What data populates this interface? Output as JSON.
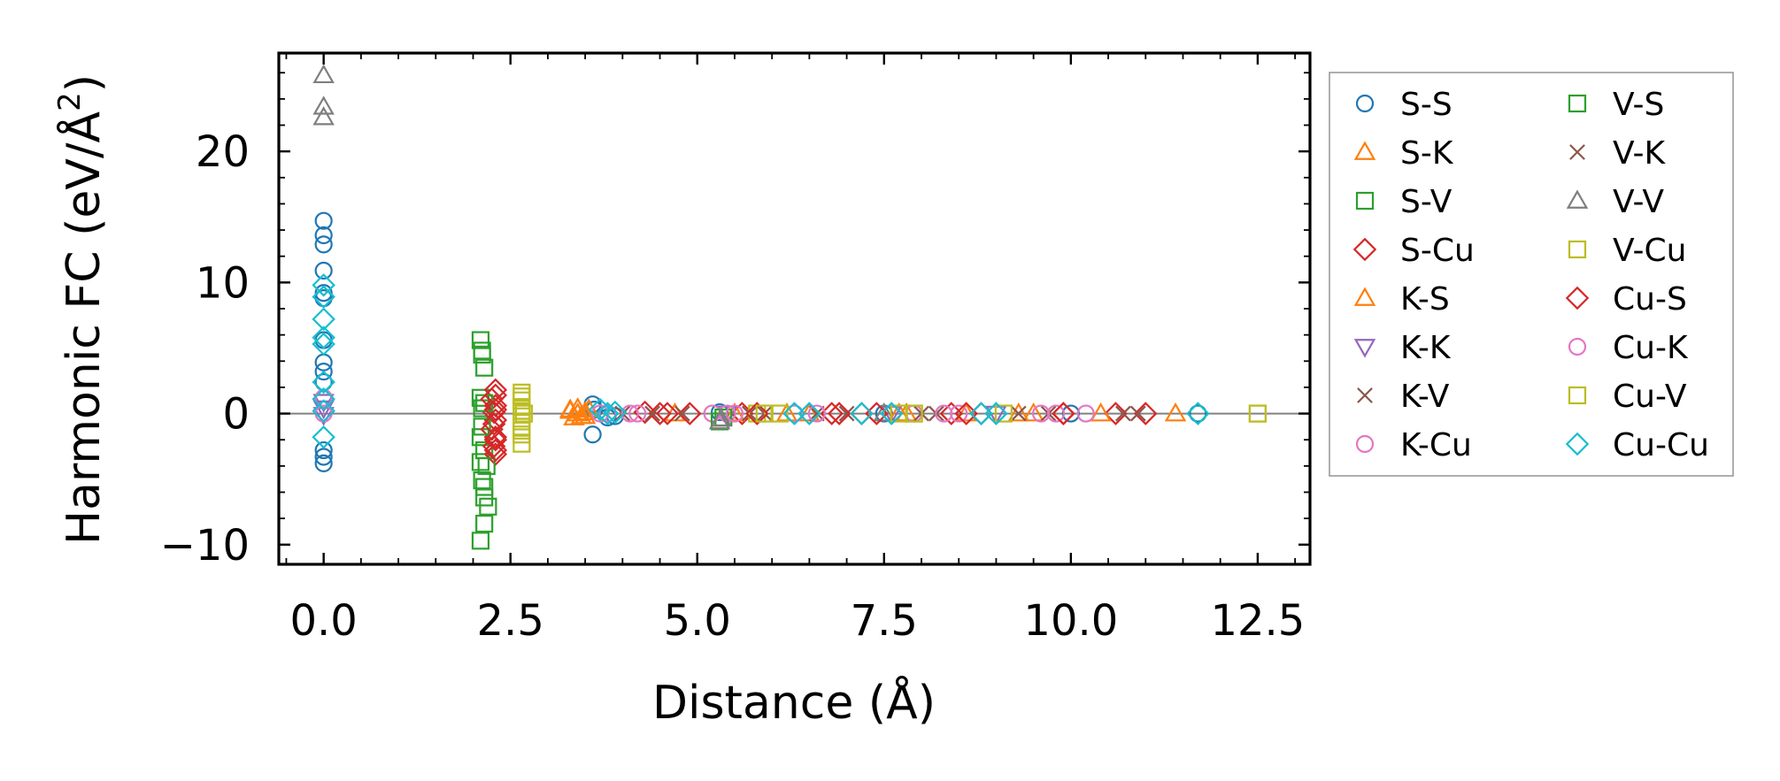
{
  "chart_data": {
    "type": "scatter",
    "title": "",
    "xlabel": "Distance (Å)",
    "ylabel_main": "Harmonic FC (eV/Å",
    "ylabel_sup": "2",
    "ylabel_close": ")",
    "xlim": [
      -0.6,
      13.2
    ],
    "ylim": [
      -11.5,
      27.5
    ],
    "xticks": [
      0.0,
      2.5,
      5.0,
      7.5,
      10.0,
      12.5
    ],
    "xtick_labels": [
      "0.0",
      "2.5",
      "5.0",
      "7.5",
      "10.0",
      "12.5"
    ],
    "yticks": [
      -10,
      0,
      10,
      20
    ],
    "ytick_labels": [
      "−10",
      "0",
      "10",
      "20"
    ],
    "zero_line": 0,
    "legend_placement": "outside-right",
    "series": [
      {
        "name": "S-S",
        "marker": "circle",
        "color": "#1f77b4",
        "points": [
          [
            0,
            14.7
          ],
          [
            0,
            13.6
          ],
          [
            0,
            12.9
          ],
          [
            0,
            10.9
          ],
          [
            0,
            9.2
          ],
          [
            0,
            8.8
          ],
          [
            0,
            5.6
          ],
          [
            0,
            3.9
          ],
          [
            0,
            3.2
          ],
          [
            0,
            2.4
          ],
          [
            0,
            -2.8
          ],
          [
            0,
            -3.3
          ],
          [
            0,
            -3.8
          ],
          [
            3.6,
            0.7
          ],
          [
            3.62,
            0.3
          ],
          [
            3.6,
            -1.6
          ],
          [
            3.8,
            -0.3
          ],
          [
            3.9,
            -0.2
          ],
          [
            5.3,
            0.1
          ],
          [
            7.5,
            0.0
          ],
          [
            10.0,
            0.0
          ],
          [
            11.7,
            0.0
          ]
        ]
      },
      {
        "name": "S-K",
        "marker": "triangle-up",
        "color": "#ff7f0e",
        "points": [
          [
            3.3,
            0.2
          ],
          [
            3.35,
            -0.3
          ],
          [
            3.4,
            0.4
          ],
          [
            3.45,
            -0.2
          ],
          [
            3.5,
            0.1
          ],
          [
            3.55,
            0.3
          ],
          [
            4.7,
            0.0
          ],
          [
            6.5,
            0.0
          ],
          [
            7.8,
            0.0
          ],
          [
            8.6,
            0.0
          ],
          [
            9.5,
            0.0
          ],
          [
            11.4,
            0.0
          ]
        ]
      },
      {
        "name": "S-V",
        "marker": "square",
        "color": "#2ca02c",
        "points": [
          [
            2.1,
            5.6
          ],
          [
            2.12,
            4.5
          ],
          [
            2.15,
            3.5
          ],
          [
            2.1,
            1.2
          ],
          [
            2.12,
            0.4
          ],
          [
            2.1,
            -1.8
          ],
          [
            2.15,
            -2.8
          ],
          [
            2.1,
            -3.7
          ],
          [
            2.12,
            -5.1
          ],
          [
            2.15,
            -5.6
          ],
          [
            2.2,
            -7.1
          ],
          [
            2.15,
            -8.4
          ],
          [
            2.1,
            -9.7
          ]
        ]
      },
      {
        "name": "S-Cu",
        "marker": "diamond",
        "color": "#d62728",
        "points": [
          [
            2.3,
            1.8
          ],
          [
            2.25,
            1.1
          ],
          [
            2.3,
            0.6
          ],
          [
            2.28,
            0.1
          ],
          [
            2.3,
            -0.5
          ],
          [
            2.25,
            -1.2
          ],
          [
            2.3,
            -1.8
          ],
          [
            2.28,
            -2.5
          ],
          [
            2.3,
            -3.1
          ],
          [
            4.3,
            0.1
          ],
          [
            4.5,
            0.0
          ],
          [
            4.9,
            0.0
          ],
          [
            5.6,
            0.0
          ],
          [
            6.8,
            0.0
          ],
          [
            7.2,
            0.0
          ],
          [
            8.4,
            0.0
          ],
          [
            8.8,
            0.0
          ],
          [
            9.9,
            0.0
          ],
          [
            10.6,
            0.0
          ],
          [
            11.0,
            0.0
          ]
        ]
      },
      {
        "name": "K-S",
        "marker": "triangle-up",
        "color": "#ff7f0e",
        "points": [
          [
            3.3,
            0.3
          ],
          [
            3.4,
            0.0
          ],
          [
            3.5,
            -0.2
          ],
          [
            5.5,
            0.0
          ],
          [
            6.2,
            0.0
          ],
          [
            7.7,
            0.0
          ],
          [
            9.3,
            0.0
          ],
          [
            10.4,
            0.0
          ]
        ]
      },
      {
        "name": "K-K",
        "marker": "triangle-down",
        "color": "#9467bd",
        "points": [
          [
            0,
            0.4
          ],
          [
            0,
            -0.1
          ],
          [
            0,
            0.9
          ],
          [
            5.4,
            0.0
          ],
          [
            7.6,
            0.0
          ],
          [
            9.0,
            0.0
          ]
        ]
      },
      {
        "name": "K-V",
        "marker": "x",
        "color": "#8c564b",
        "points": [
          [
            4.0,
            0.0
          ],
          [
            4.8,
            0.0
          ],
          [
            5.9,
            0.0
          ],
          [
            6.6,
            0.0
          ],
          [
            8.2,
            0.0
          ],
          [
            9.7,
            0.0
          ],
          [
            10.7,
            0.0
          ]
        ]
      },
      {
        "name": "K-Cu",
        "marker": "circle",
        "color": "#e377c2",
        "points": [
          [
            0,
            1.2
          ],
          [
            0,
            0.0
          ],
          [
            3.8,
            0.0
          ],
          [
            4.1,
            0.0
          ],
          [
            5.2,
            0.0
          ],
          [
            5.4,
            0.0
          ],
          [
            6.3,
            0.0
          ],
          [
            7.9,
            0.0
          ],
          [
            8.5,
            0.0
          ],
          [
            9.8,
            0.0
          ],
          [
            10.2,
            0.0
          ]
        ]
      },
      {
        "name": "V-S",
        "marker": "square",
        "color": "#2ca02c",
        "points": [
          [
            2.12,
            4.8
          ],
          [
            2.15,
            0.8
          ],
          [
            2.12,
            -1.0
          ],
          [
            2.18,
            -4.0
          ],
          [
            2.15,
            -6.4
          ],
          [
            5.3,
            -0.6
          ],
          [
            5.35,
            -0.3
          ]
        ]
      },
      {
        "name": "V-K",
        "marker": "x",
        "color": "#8c564b",
        "points": [
          [
            4.4,
            0.0
          ],
          [
            5.7,
            0.0
          ],
          [
            7.0,
            0.0
          ],
          [
            8.0,
            0.0
          ],
          [
            9.3,
            0.0
          ],
          [
            10.9,
            0.0
          ]
        ]
      },
      {
        "name": "V-V",
        "marker": "triangle-up",
        "color": "#7f7f7f",
        "points": [
          [
            0,
            25.8
          ],
          [
            0,
            23.4
          ],
          [
            0,
            22.6
          ],
          [
            5.3,
            -0.6
          ],
          [
            5.32,
            -0.4
          ],
          [
            7.5,
            0.0
          ]
        ]
      },
      {
        "name": "V-Cu",
        "marker": "square",
        "color": "#bcbd22",
        "points": [
          [
            2.65,
            1.6
          ],
          [
            2.65,
            1.0
          ],
          [
            2.65,
            0.5
          ],
          [
            2.68,
            0.0
          ],
          [
            2.65,
            -0.6
          ],
          [
            2.65,
            -1.3
          ],
          [
            2.65,
            -2.3
          ],
          [
            5.8,
            0.0
          ],
          [
            6.1,
            0.0
          ],
          [
            7.7,
            0.0
          ],
          [
            7.9,
            0.0
          ],
          [
            9.1,
            0.0
          ],
          [
            12.5,
            0.0
          ]
        ]
      },
      {
        "name": "Cu-S",
        "marker": "diamond",
        "color": "#d62728",
        "points": [
          [
            2.3,
            1.4
          ],
          [
            2.3,
            0.3
          ],
          [
            2.28,
            -0.8
          ],
          [
            2.3,
            -2.0
          ],
          [
            2.3,
            -2.8
          ],
          [
            4.6,
            0.0
          ],
          [
            5.8,
            0.0
          ],
          [
            6.9,
            0.0
          ],
          [
            7.4,
            0.0
          ],
          [
            8.6,
            0.0
          ],
          [
            9.9,
            0.0
          ]
        ]
      },
      {
        "name": "Cu-K",
        "marker": "circle",
        "color": "#e377c2",
        "points": [
          [
            3.7,
            0.0
          ],
          [
            4.2,
            0.0
          ],
          [
            5.5,
            0.0
          ],
          [
            6.6,
            0.0
          ],
          [
            8.3,
            0.0
          ],
          [
            9.6,
            0.0
          ]
        ]
      },
      {
        "name": "Cu-V",
        "marker": "square",
        "color": "#bcbd22",
        "points": [
          [
            2.65,
            1.3
          ],
          [
            2.65,
            0.2
          ],
          [
            2.65,
            -1.0
          ],
          [
            2.65,
            -1.6
          ],
          [
            5.9,
            0.0
          ],
          [
            7.9,
            0.0
          ],
          [
            12.5,
            0.0
          ]
        ]
      },
      {
        "name": "Cu-Cu",
        "marker": "diamond",
        "color": "#17becf",
        "points": [
          [
            0,
            9.8
          ],
          [
            0,
            8.9
          ],
          [
            0,
            7.2
          ],
          [
            0,
            5.8
          ],
          [
            0,
            5.3
          ],
          [
            0,
            2.4
          ],
          [
            0,
            1.1
          ],
          [
            0,
            0.2
          ],
          [
            0,
            -1.8
          ],
          [
            3.7,
            0.3
          ],
          [
            3.8,
            0.0
          ],
          [
            3.9,
            0.1
          ],
          [
            6.3,
            0.0
          ],
          [
            6.5,
            0.0
          ],
          [
            7.2,
            0.0
          ],
          [
            7.6,
            0.0
          ],
          [
            8.8,
            0.0
          ],
          [
            9.0,
            0.0
          ],
          [
            11.7,
            0.0
          ]
        ]
      }
    ]
  }
}
